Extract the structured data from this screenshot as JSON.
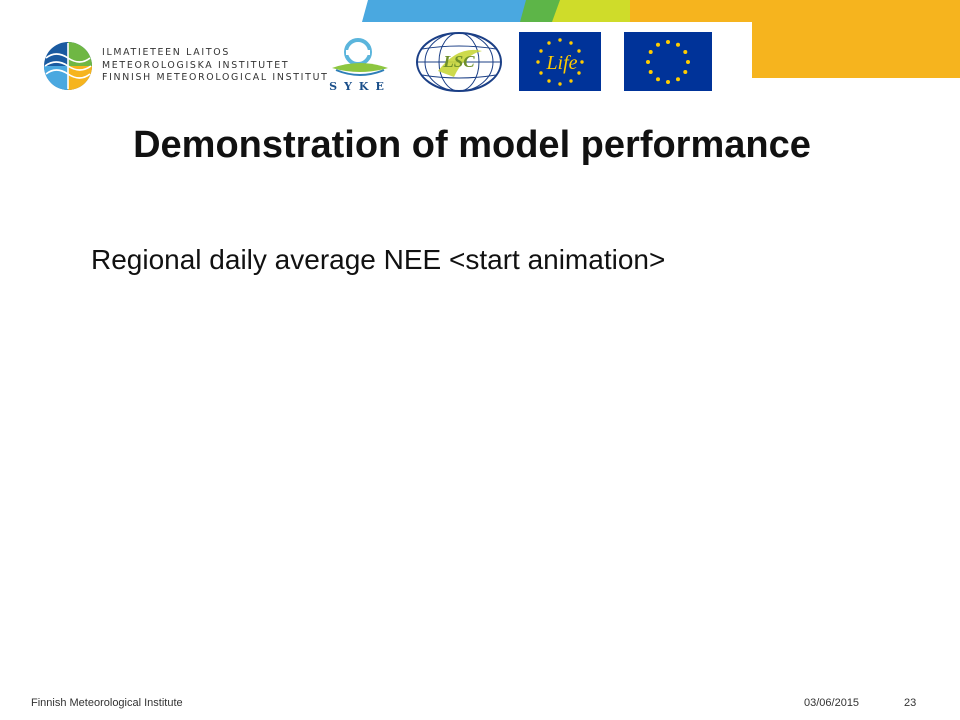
{
  "header": {
    "fmi_logo": {
      "lines": [
        "ILMATIETEEN LAITOS",
        "METEOROLOGISKA INSTITUTET",
        "FINNISH METEOROLOGICAL INSTITUT"
      ]
    },
    "syke_logo": {
      "text": "SYKE"
    },
    "lsc_logo": {
      "text": "LSC"
    },
    "life_logo": {
      "text": "Life"
    },
    "eu_flag": {
      "stars": 12
    },
    "colors": {
      "band_blue": "#4aa8e0",
      "band_green": "#5db548",
      "band_lime": "#cfdc2a",
      "band_yellow": "#f6b41e",
      "eu_blue": "#003399",
      "eu_yellow": "#ffcc00"
    }
  },
  "slide": {
    "title": "Demonstration of model performance",
    "body": "Regional daily average NEE <start animation>"
  },
  "footer": {
    "organization": "Finnish Meteorological Institute",
    "date": "03/06/2015",
    "page": "23"
  }
}
